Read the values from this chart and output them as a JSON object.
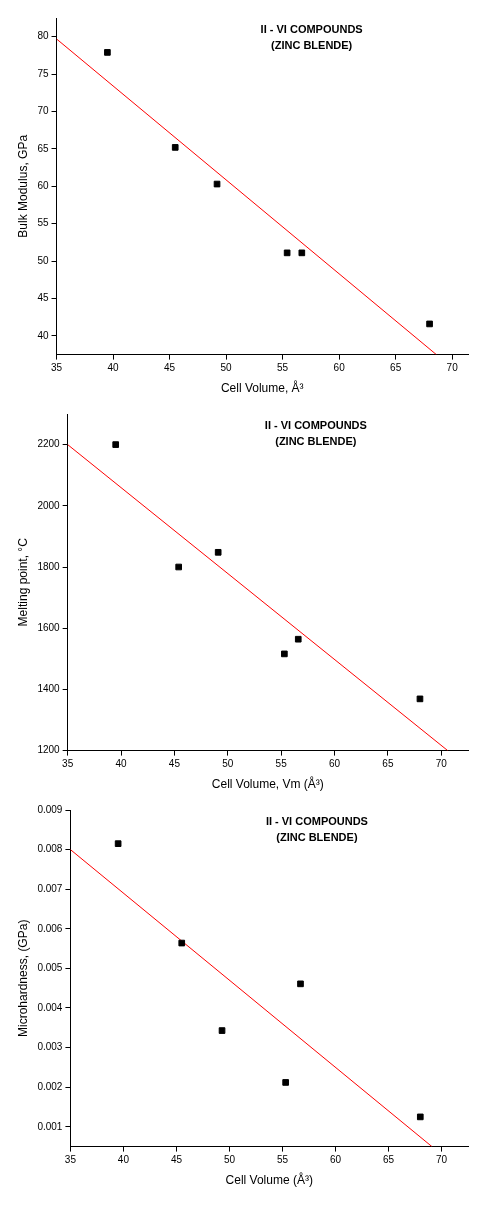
{
  "chart_data": [
    {
      "type": "scatter",
      "title": "II - VI COMPOUNDS",
      "subtitle": "(ZINC BLENDE)",
      "xlabel": "Cell Volume, Å³",
      "ylabel": "Bulk Modulus, GPa",
      "xlim": [
        35,
        71.4
      ],
      "xticks": [
        35,
        40,
        45,
        50,
        55,
        60,
        65,
        70
      ],
      "ylim": [
        37.5,
        82.5
      ],
      "yticks": [
        40,
        45,
        50,
        55,
        60,
        65,
        70,
        75,
        80
      ],
      "grid": false,
      "legend": false,
      "series": [
        {
          "color": "#000000",
          "marker": "square",
          "x": [
            39.5,
            45.5,
            49.2,
            55.4,
            56.7,
            68.0
          ],
          "values": [
            77.9,
            65.2,
            60.3,
            51.1,
            51.1,
            41.6
          ]
        },
        {
          "type": "line",
          "color": "#ff0000",
          "marker": "none",
          "line_style": "solid",
          "x": [
            35,
            68.6
          ],
          "values": [
            79.7,
            37.5
          ]
        }
      ]
    },
    {
      "type": "scatter",
      "title": "II - VI COMPOUNDS",
      "subtitle": "(ZINC BLENDE)",
      "xlabel": "Cell Volume, Vm (Å³)",
      "ylabel": "Melting point, °C",
      "xlim": [
        35,
        72.5
      ],
      "xticks": [
        35,
        40,
        45,
        50,
        55,
        60,
        65,
        70
      ],
      "ylim": [
        1200,
        2300
      ],
      "yticks": [
        1200,
        1400,
        1600,
        1800,
        2000,
        2200
      ],
      "grid": false,
      "legend": false,
      "series": [
        {
          "color": "#000000",
          "marker": "square",
          "x": [
            39.5,
            45.4,
            49.1,
            55.3,
            56.6,
            68.0
          ],
          "values": [
            2200,
            1800,
            1848,
            1516,
            1564,
            1369
          ]
        },
        {
          "type": "line",
          "color": "#ff0000",
          "marker": "none",
          "line_style": "solid",
          "x": [
            35,
            70.6
          ],
          "values": [
            2200,
            1200
          ]
        }
      ]
    },
    {
      "type": "scatter",
      "title": "II - VI COMPOUNDS",
      "subtitle": "(ZINC BLENDE)",
      "xlabel": "Cell Volume (Å³)",
      "ylabel": "Microhardness, (GPa)",
      "xlim": [
        35,
        72.5
      ],
      "xticks": [
        35,
        40,
        45,
        50,
        55,
        60,
        65,
        70
      ],
      "ylim": [
        0.0005,
        0.009
      ],
      "yticks": [
        0.001,
        0.002,
        0.003,
        0.004,
        0.005,
        0.006,
        0.007,
        0.008,
        0.009
      ],
      "grid": false,
      "legend": false,
      "series": [
        {
          "color": "#000000",
          "marker": "square",
          "x": [
            39.5,
            45.5,
            49.3,
            55.3,
            56.7,
            68.0
          ],
          "values": [
            0.00815,
            0.00564,
            0.00343,
            0.00212,
            0.00461,
            0.00125
          ]
        },
        {
          "type": "line",
          "color": "#ff0000",
          "marker": "none",
          "line_style": "solid",
          "x": [
            35,
            69.1
          ],
          "values": [
            0.008,
            0.0005
          ]
        }
      ]
    }
  ]
}
